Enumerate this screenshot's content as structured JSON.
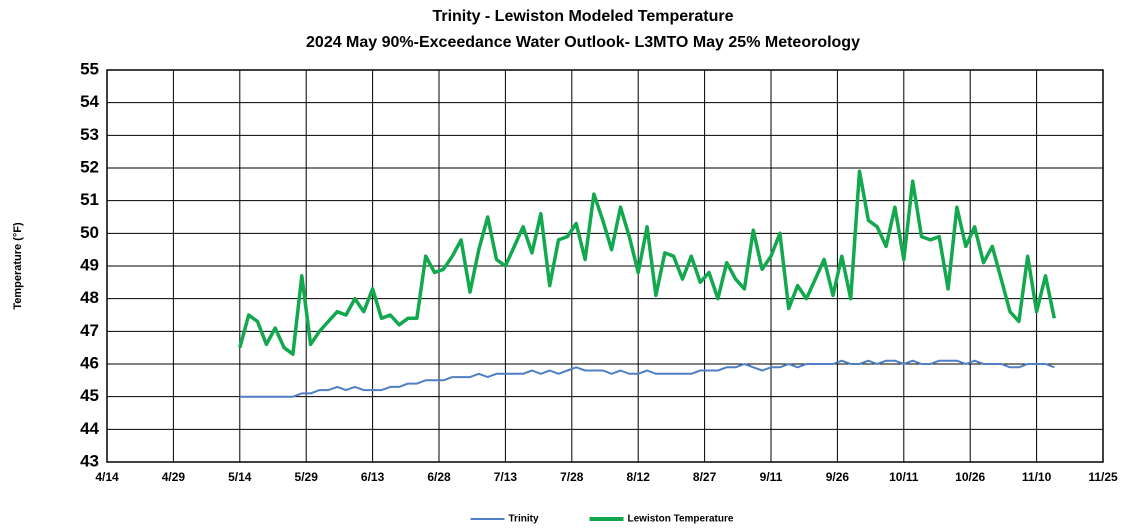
{
  "chart_data": {
    "type": "line",
    "title": "Trinity - Lewiston Modeled Temperature",
    "subtitle": "2024 May 90%-Exceedance Water Outlook- L3MTO May 25% Meteorology",
    "y_label": "Temperature (°F)",
    "x": [
      "5/14",
      "5/16",
      "5/18",
      "5/20",
      "5/22",
      "5/24",
      "5/26",
      "5/28",
      "5/30",
      "6/1",
      "6/3",
      "6/5",
      "6/7",
      "6/9",
      "6/11",
      "6/13",
      "6/15",
      "6/17",
      "6/19",
      "6/21",
      "6/23",
      "6/25",
      "6/27",
      "6/29",
      "7/1",
      "7/3",
      "7/5",
      "7/7",
      "7/9",
      "7/11",
      "7/13",
      "7/15",
      "7/17",
      "7/19",
      "7/21",
      "7/23",
      "7/25",
      "7/27",
      "7/29",
      "7/31",
      "8/2",
      "8/4",
      "8/6",
      "8/8",
      "8/10",
      "8/12",
      "8/14",
      "8/16",
      "8/18",
      "8/20",
      "8/22",
      "8/24",
      "8/26",
      "8/28",
      "8/30",
      "9/1",
      "9/3",
      "9/5",
      "9/7",
      "9/9",
      "9/11",
      "9/13",
      "9/15",
      "9/17",
      "9/19",
      "9/21",
      "9/23",
      "9/25",
      "9/27",
      "9/29",
      "10/1",
      "10/3",
      "10/5",
      "10/7",
      "10/9",
      "10/11",
      "10/13",
      "10/15",
      "10/17",
      "10/19",
      "10/21",
      "10/23",
      "10/25",
      "10/27",
      "10/29",
      "10/31",
      "11/2",
      "11/4",
      "11/6",
      "11/8",
      "11/10",
      "11/12",
      "11/14"
    ],
    "series": [
      {
        "name": "Trinity",
        "color": "#4f7fc4",
        "values": [
          45.0,
          45.0,
          45.0,
          45.0,
          45.0,
          45.0,
          45.0,
          45.1,
          45.1,
          45.2,
          45.2,
          45.3,
          45.2,
          45.3,
          45.2,
          45.2,
          45.2,
          45.3,
          45.3,
          45.4,
          45.4,
          45.5,
          45.5,
          45.5,
          45.6,
          45.6,
          45.6,
          45.7,
          45.6,
          45.7,
          45.7,
          45.7,
          45.7,
          45.8,
          45.7,
          45.8,
          45.7,
          45.8,
          45.9,
          45.8,
          45.8,
          45.8,
          45.7,
          45.8,
          45.7,
          45.7,
          45.8,
          45.7,
          45.7,
          45.7,
          45.7,
          45.7,
          45.8,
          45.8,
          45.8,
          45.9,
          45.9,
          46.0,
          45.9,
          45.8,
          45.9,
          45.9,
          46.0,
          45.9,
          46.0,
          46.0,
          46.0,
          46.0,
          46.1,
          46.0,
          46.0,
          46.1,
          46.0,
          46.1,
          46.1,
          46.0,
          46.1,
          46.0,
          46.0,
          46.1,
          46.1,
          46.1,
          46.0,
          46.1,
          46.0,
          46.0,
          46.0,
          45.9,
          45.9,
          46.0,
          46.0,
          46.0,
          45.9
        ]
      },
      {
        "name": "Lewiston Temperature",
        "color": "#12a84e",
        "values": [
          46.5,
          47.5,
          47.3,
          46.6,
          47.1,
          46.5,
          46.3,
          48.7,
          46.6,
          47.0,
          47.3,
          47.6,
          47.5,
          48.0,
          47.6,
          48.3,
          47.4,
          47.5,
          47.2,
          47.4,
          47.4,
          49.3,
          48.8,
          48.9,
          49.3,
          49.8,
          48.2,
          49.5,
          50.5,
          49.2,
          49.0,
          49.6,
          50.2,
          49.4,
          50.6,
          48.4,
          49.8,
          49.9,
          50.3,
          49.2,
          51.2,
          50.4,
          49.5,
          50.8,
          49.9,
          48.8,
          50.2,
          48.1,
          49.4,
          49.3,
          48.6,
          49.3,
          48.5,
          48.8,
          48.0,
          49.1,
          48.6,
          48.3,
          50.1,
          48.9,
          49.3,
          50.0,
          47.7,
          48.4,
          48.0,
          48.6,
          49.2,
          48.1,
          49.3,
          48.0,
          51.9,
          50.4,
          50.2,
          49.6,
          50.8,
          49.2,
          51.6,
          49.9,
          49.8,
          49.9,
          48.3,
          50.8,
          49.6,
          50.2,
          49.1,
          49.6,
          48.6,
          47.6,
          47.3,
          49.3,
          47.6,
          48.7,
          47.4
        ]
      }
    ],
    "xlim": [
      "4/14",
      "11/25"
    ],
    "xticks": [
      "4/14",
      "4/29",
      "5/14",
      "5/29",
      "6/13",
      "6/28",
      "7/13",
      "7/28",
      "8/12",
      "8/27",
      "9/11",
      "9/26",
      "10/11",
      "10/26",
      "11/10",
      "11/25"
    ],
    "ylim": [
      43,
      55
    ],
    "yticks": [
      43,
      44,
      45,
      46,
      47,
      48,
      49,
      50,
      51,
      52,
      53,
      54,
      55
    ],
    "grid": true,
    "legend": "bottom"
  }
}
